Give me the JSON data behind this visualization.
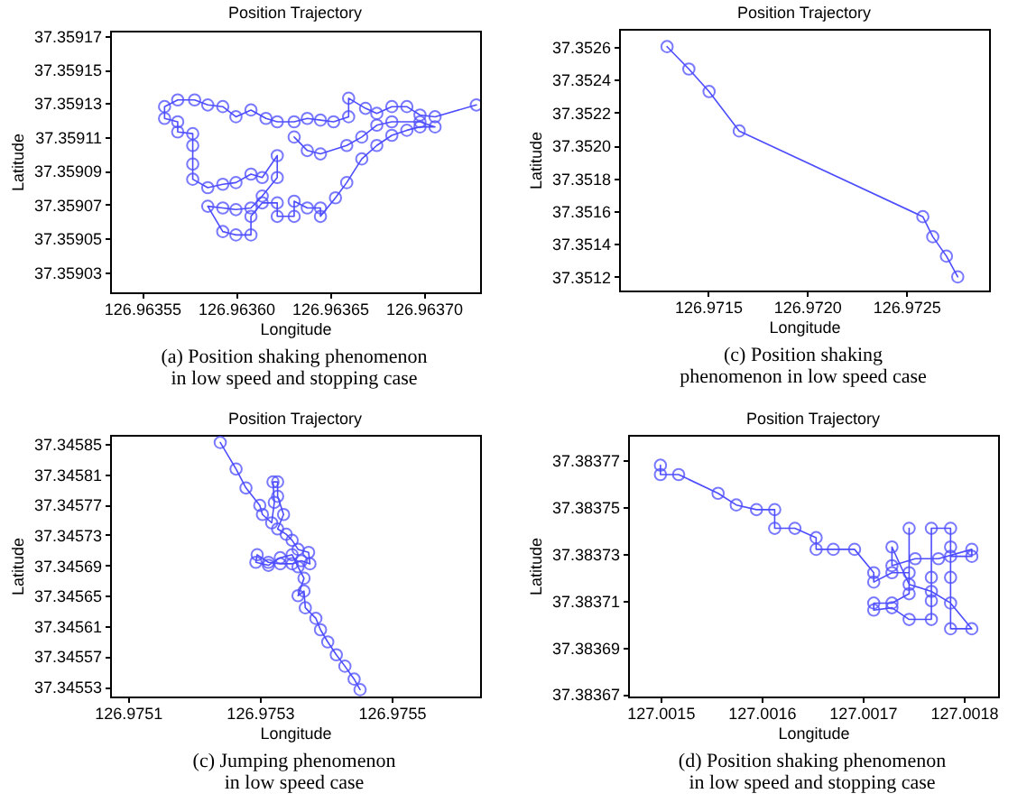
{
  "chart_data": [
    {
      "type": "line",
      "title": "Position Trajectory",
      "xlabel": "Longitude",
      "ylabel": "Latitude",
      "annotations": [
        "(a) Position shaking phenomenon in low speed and stopping case"
      ],
      "marker": "circle",
      "color": "#4d4dff",
      "xlim": [
        126.963533,
        126.96373
      ],
      "ylim": [
        37.359018,
        37.359173
      ],
      "xticks": [
        126.96355,
        {
          "value": 126.9636,
          "label": "126.96360"
        },
        126.96365,
        {
          "value": 126.9637,
          "label": "126.96370"
        }
      ],
      "yticks": [
        37.35903,
        37.35905,
        37.35907,
        37.35909,
        37.35911,
        37.35913,
        37.35915,
        37.35917
      ],
      "x": [
        126.963728,
        126.963706,
        126.963698,
        126.963691,
        126.963683,
        126.963675,
        126.963669,
        126.96366,
        126.96366,
        126.963652,
        126.963645,
        126.963638,
        126.963631,
        126.963622,
        126.963616,
        126.963608,
        126.9636,
        126.963593,
        126.963585,
        126.963578,
        126.963569,
        126.963562,
        126.963562,
        126.963569,
        126.963569,
        126.963577,
        126.963577,
        126.963577,
        126.963577,
        126.963585,
        126.963593,
        126.9636,
        126.963608,
        126.963614,
        126.963622,
        126.963622,
        126.963614,
        126.963608,
        126.9636,
        126.963593,
        126.963585,
        126.963593,
        126.9636,
        126.963608,
        126.963608,
        126.963614,
        126.963622,
        126.963622,
        126.963631,
        126.963631,
        126.963638,
        126.963645,
        126.963645,
        126.963653,
        126.963659,
        126.963667,
        126.963675,
        126.963683,
        126.963691,
        126.963698,
        126.963706,
        126.963698,
        126.963683,
        126.963675,
        126.963667,
        126.963659,
        126.963645,
        126.963638,
        126.963631
      ],
      "values": [
        37.359129,
        37.359122,
        37.359123,
        37.359128,
        37.359128,
        37.359124,
        37.359127,
        37.359133,
        37.359122,
        37.359119,
        37.35912,
        37.359121,
        37.359119,
        37.359119,
        37.359121,
        37.359126,
        37.359122,
        37.359128,
        37.359129,
        37.359132,
        37.359132,
        37.359128,
        37.359121,
        37.359119,
        37.359113,
        37.359112,
        37.359105,
        37.359094,
        37.359085,
        37.35908,
        37.359082,
        37.359083,
        37.359088,
        37.359086,
        37.359099,
        37.359086,
        37.359075,
        37.359068,
        37.359067,
        37.359068,
        37.359069,
        37.359054,
        37.359052,
        37.359052,
        37.359063,
        37.359071,
        37.359071,
        37.359063,
        37.359063,
        37.359072,
        37.359068,
        37.359068,
        37.359063,
        37.359074,
        37.359083,
        37.359097,
        37.359105,
        37.359111,
        37.359114,
        37.359116,
        37.359116,
        37.359119,
        37.359119,
        37.359117,
        37.35911,
        37.359105,
        37.3591,
        37.359102,
        37.35911
      ]
    },
    {
      "type": "line",
      "title": "Position Trajectory",
      "xlabel": "Longitude",
      "ylabel": "Latitude",
      "annotations": [
        "(c) Position shaking phenomenon in low speed case"
      ],
      "marker": "circle",
      "color": "#4d4dff",
      "xlim": [
        126.971052,
        126.972918
      ],
      "ylim": [
        37.351117,
        37.352708
      ],
      "xticks": [
        126.9715,
        {
          "value": 126.972,
          "label": "126.9720"
        },
        126.9725
      ],
      "yticks": [
        37.3512,
        37.3514,
        37.3516,
        37.3518,
        {
          "value": 37.352,
          "label": "37.3520"
        },
        37.3522,
        37.3524,
        37.3526
      ],
      "x": [
        126.971294,
        126.971404,
        126.971506,
        126.971658,
        126.972584,
        126.972634,
        126.972703,
        126.97276
      ],
      "values": [
        37.3526,
        37.352464,
        37.352327,
        37.352087,
        37.351566,
        37.351444,
        37.351326,
        37.3512
      ]
    },
    {
      "type": "line",
      "title": "Position Trajectory",
      "xlabel": "Longitude",
      "ylabel": "Latitude",
      "annotations": [
        "(c) Jumping phenomenon in low speed case"
      ],
      "marker": "circle",
      "color": "#4d4dff",
      "xlim": [
        126.975073,
        126.975634
      ],
      "ylim": [
        37.345517,
        37.345862
      ],
      "xticks": [
        126.9751,
        126.9753,
        126.9755
      ],
      "yticks": [
        37.34553,
        37.34557,
        37.34561,
        37.34565,
        37.34569,
        37.34573,
        37.34577,
        37.34581,
        37.34585
      ],
      "x": [
        126.97524,
        126.975264,
        126.975279,
        126.9753,
        126.975304,
        126.975318,
        126.975322,
        126.97532,
        126.975327,
        126.975327,
        126.975336,
        126.975327,
        126.97534,
        126.975349,
        126.975358,
        126.975374,
        126.975376,
        126.975363,
        126.975349,
        126.975331,
        126.975313,
        126.975296,
        126.975294,
        126.975313,
        126.975331,
        126.975349,
        126.975358,
        126.975367,
        126.975358,
        126.975367,
        126.975369,
        126.975385,
        126.975392,
        126.975403,
        126.975416,
        126.975429,
        126.975443,
        126.975452
      ],
      "values": [
        37.345852,
        37.345817,
        37.345792,
        37.345769,
        37.345757,
        37.345746,
        37.345773,
        37.3458,
        37.3458,
        37.345781,
        37.345757,
        37.345738,
        37.345731,
        37.345723,
        37.345711,
        37.345707,
        37.345692,
        37.345696,
        37.345692,
        37.345692,
        37.345694,
        37.345704,
        37.345694,
        37.34569,
        37.3457,
        37.345704,
        37.345688,
        37.345673,
        37.34565,
        37.345656,
        37.345634,
        37.34562,
        37.345605,
        37.345589,
        37.345572,
        37.345557,
        37.34554,
        37.345526
      ]
    },
    {
      "type": "line",
      "title": "Position Trajectory",
      "xlabel": "Longitude",
      "ylabel": "Latitude",
      "annotations": [
        "(d) Position shaking phenomenon in low speed and stopping case"
      ],
      "marker": "circle",
      "color": "#4d4dff",
      "xlim": [
        127.001468,
        127.001834
      ],
      "ylim": [
        37.383669,
        37.383781
      ],
      "xticks": [
        127.0015,
        127.0016,
        127.0017,
        127.0018
      ],
      "yticks": [
        37.38367,
        37.38369,
        37.38371,
        37.38373,
        37.38375,
        37.38377
      ],
      "x": [
        127.0015,
        127.0015,
        127.001518,
        127.001557,
        127.001575,
        127.001595,
        127.001613,
        127.001613,
        127.001633,
        127.001654,
        127.001654,
        127.001671,
        127.001692,
        127.001711,
        127.001711,
        127.001729,
        127.001746,
        127.001746,
        127.001746,
        127.001729,
        127.001711,
        127.001711,
        127.001729,
        127.001746,
        127.001768,
        127.001768,
        127.001768,
        127.001768,
        127.001787,
        127.001787,
        127.001787,
        127.001787,
        127.001808,
        127.001787,
        127.001768,
        127.001746,
        127.001729,
        127.001729,
        127.001752,
        127.001775,
        127.001808,
        127.001808,
        127.001787
      ],
      "values": [
        37.383768,
        37.383764,
        37.383764,
        37.383756,
        37.383751,
        37.383749,
        37.383749,
        37.383741,
        37.383741,
        37.383737,
        37.383732,
        37.383732,
        37.383732,
        37.383722,
        37.383718,
        37.383722,
        37.383722,
        37.383741,
        37.383713,
        37.383709,
        37.383709,
        37.383706,
        37.383707,
        37.383702,
        37.383702,
        37.38371,
        37.38372,
        37.383741,
        37.383741,
        37.383733,
        37.38372,
        37.383698,
        37.383698,
        37.383709,
        37.383714,
        37.383717,
        37.383733,
        37.383725,
        37.383728,
        37.383728,
        37.383732,
        37.383729,
        37.383729
      ]
    }
  ]
}
